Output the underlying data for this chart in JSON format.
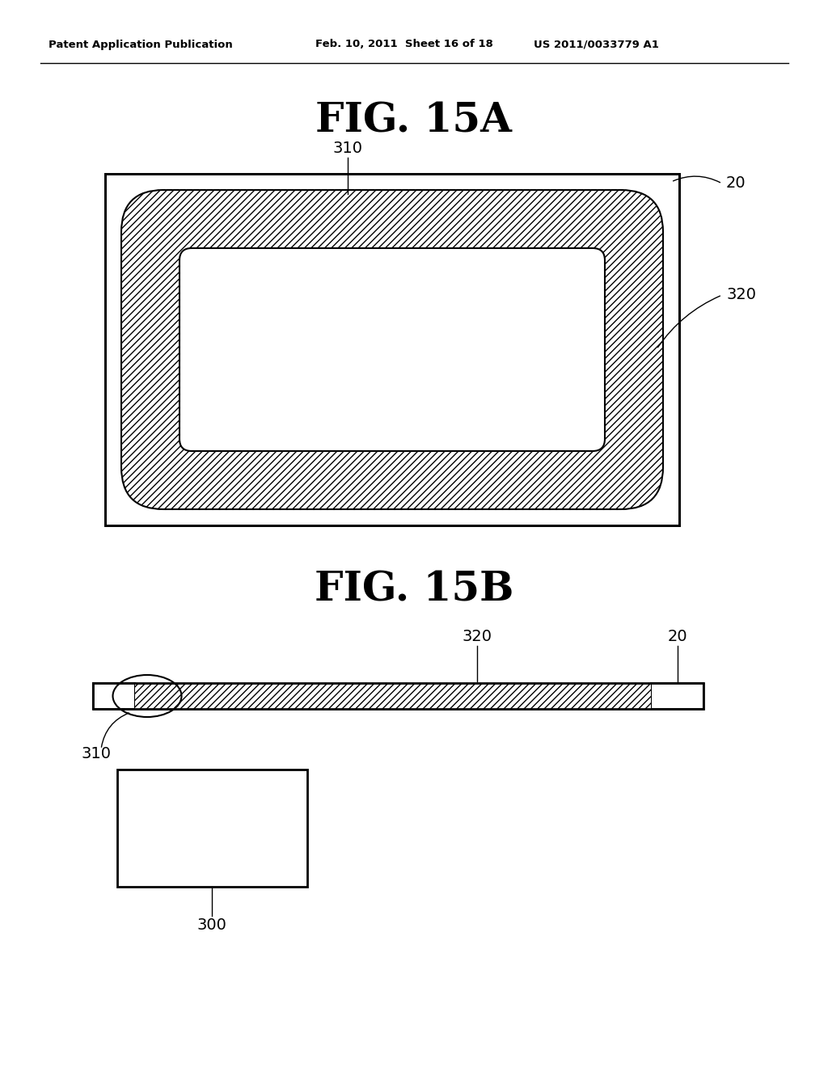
{
  "bg_color": "#ffffff",
  "header_left": "Patent Application Publication",
  "header_mid": "Feb. 10, 2011  Sheet 16 of 18",
  "header_right": "US 2011/0033779 A1",
  "fig_title_A": "FIG. 15A",
  "fig_title_B": "FIG. 15B",
  "label_310_A": "310",
  "label_20_A": "20",
  "label_320_A": "320",
  "label_310_B": "310",
  "label_20_B": "20",
  "label_320_B": "320",
  "label_300": "300",
  "hatch_pattern": "////",
  "line_color": "#000000"
}
